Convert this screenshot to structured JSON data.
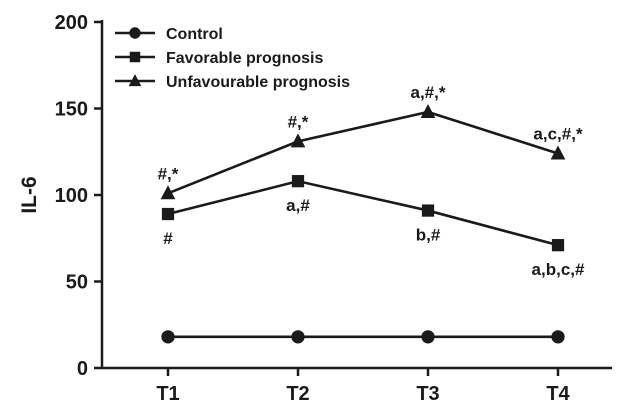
{
  "chart_data": {
    "type": "line",
    "title": "",
    "xlabel": "",
    "ylabel": "IL-6",
    "categories": [
      "T1",
      "T2",
      "T3",
      "T4"
    ],
    "ylim": [
      0,
      200
    ],
    "yticks": [
      0,
      50,
      100,
      150,
      200
    ],
    "grid": false,
    "legend_position": "top-left",
    "series": [
      {
        "name": "Control",
        "marker": "circle",
        "values": [
          18,
          18,
          18,
          18
        ],
        "annotations": [
          "",
          "",
          "",
          ""
        ]
      },
      {
        "name": "Favorable prognosis",
        "marker": "square",
        "values": [
          89,
          108,
          91,
          71
        ],
        "annotations": [
          "#",
          "a,#",
          "b,#",
          "a,b,c,#"
        ],
        "annotation_side": [
          "below",
          "below",
          "below",
          "below"
        ]
      },
      {
        "name": "Unfavourable prognosis",
        "marker": "triangle",
        "values": [
          101,
          131,
          148,
          124
        ],
        "annotations": [
          "#,*",
          "#,*",
          "a,#,*",
          "a,c,#,*"
        ],
        "annotation_side": [
          "above",
          "above",
          "above",
          "above"
        ]
      }
    ],
    "colors": {
      "ink": "#1a1a1a"
    }
  }
}
